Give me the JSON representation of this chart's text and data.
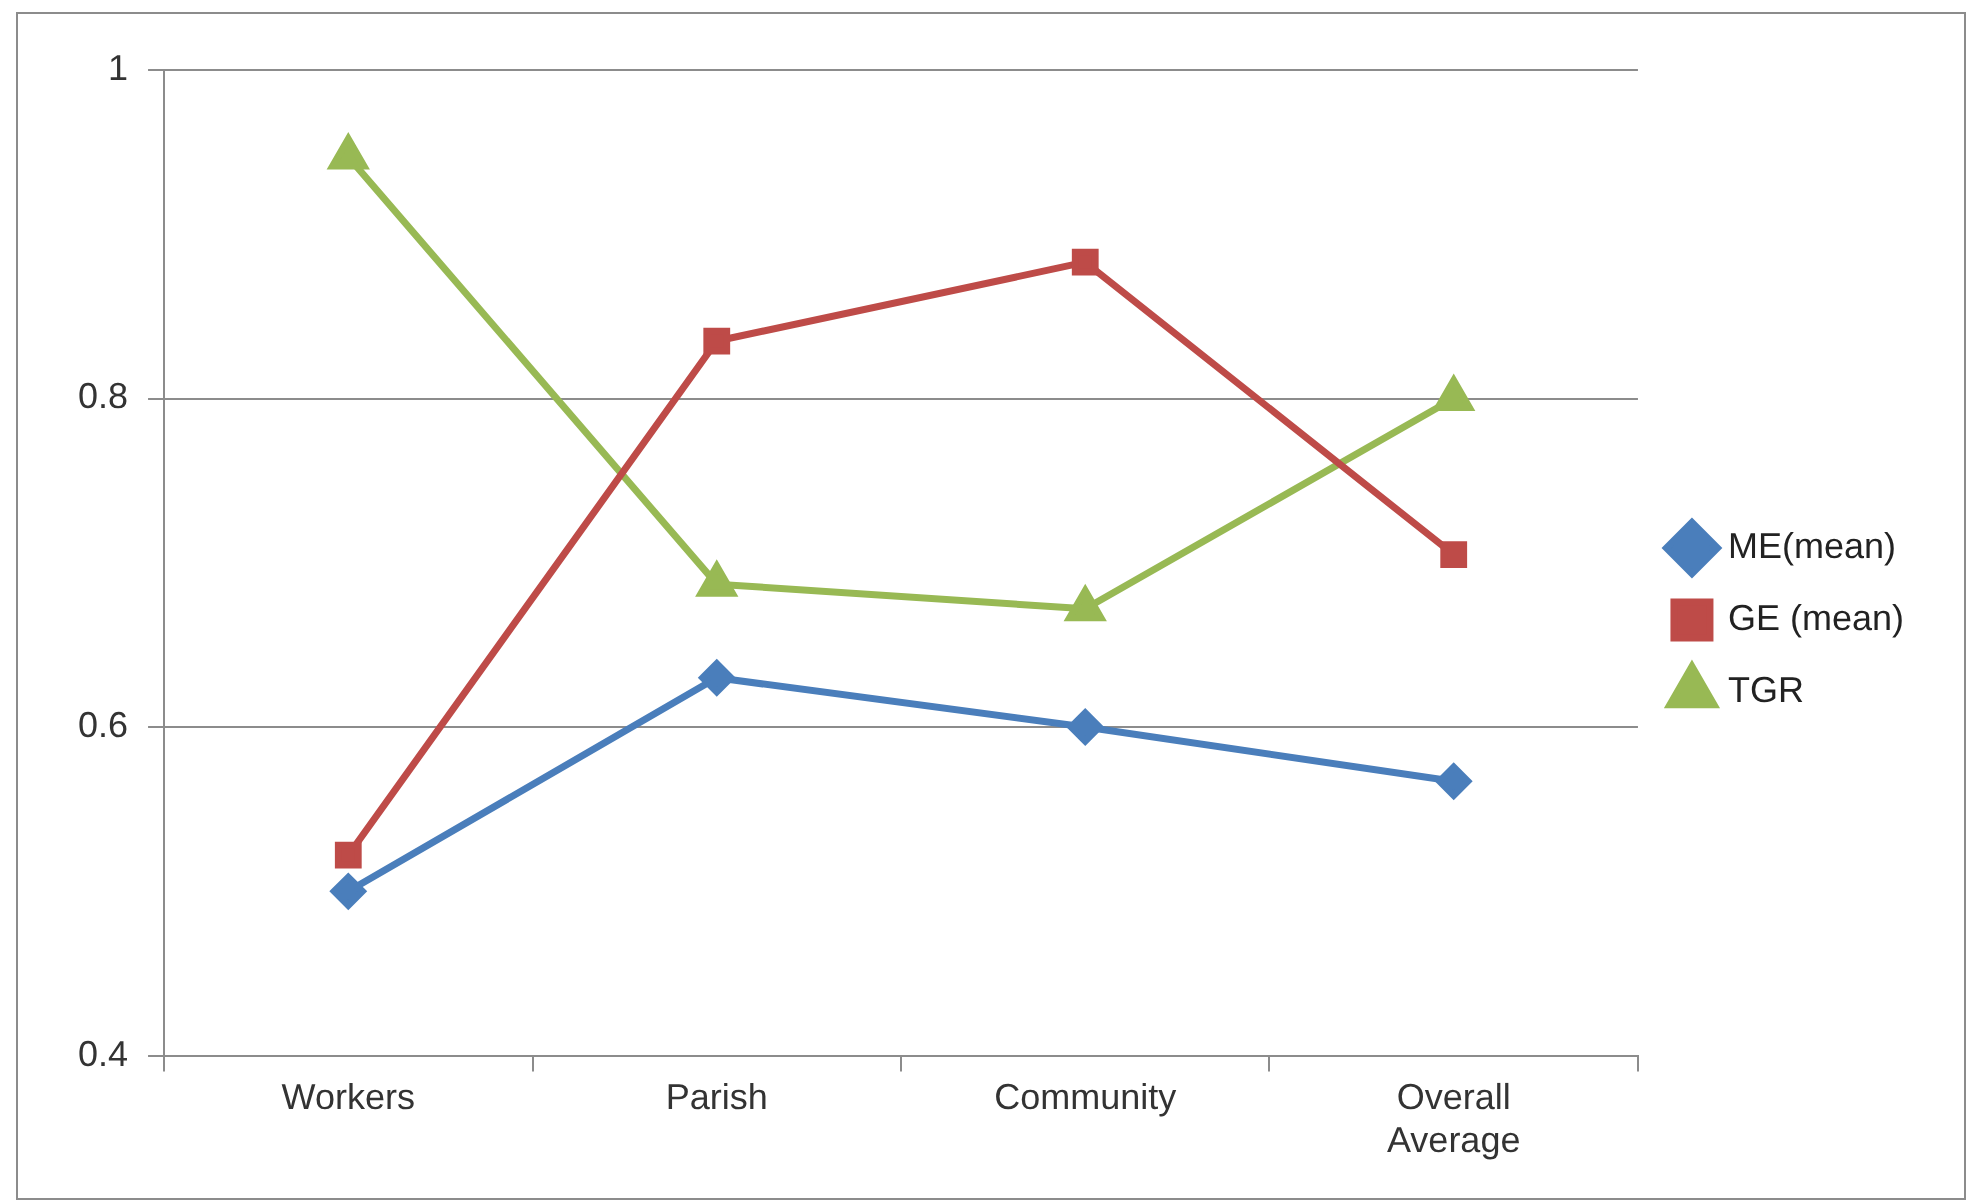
{
  "chart_data": {
    "type": "line",
    "categories": [
      "Workers",
      "Parish",
      "Community",
      "Overall Average"
    ],
    "series": [
      {
        "name": "ME(mean)",
        "color": "#4a7ebb",
        "marker": "diamond",
        "values": [
          0.5,
          0.63,
          0.6,
          0.567
        ]
      },
      {
        "name": "GE (mean)",
        "color": "#be4b48",
        "marker": "square",
        "values": [
          0.522,
          0.835,
          0.883,
          0.705
        ]
      },
      {
        "name": "TGR",
        "color": "#98b954",
        "marker": "triangle",
        "values": [
          0.947,
          0.687,
          0.672,
          0.8
        ]
      }
    ],
    "ylim": [
      0.4,
      1
    ],
    "yticks": [
      0.4,
      0.6,
      0.8,
      1
    ],
    "grid": "y",
    "legend": "right",
    "line_style": "solid"
  }
}
